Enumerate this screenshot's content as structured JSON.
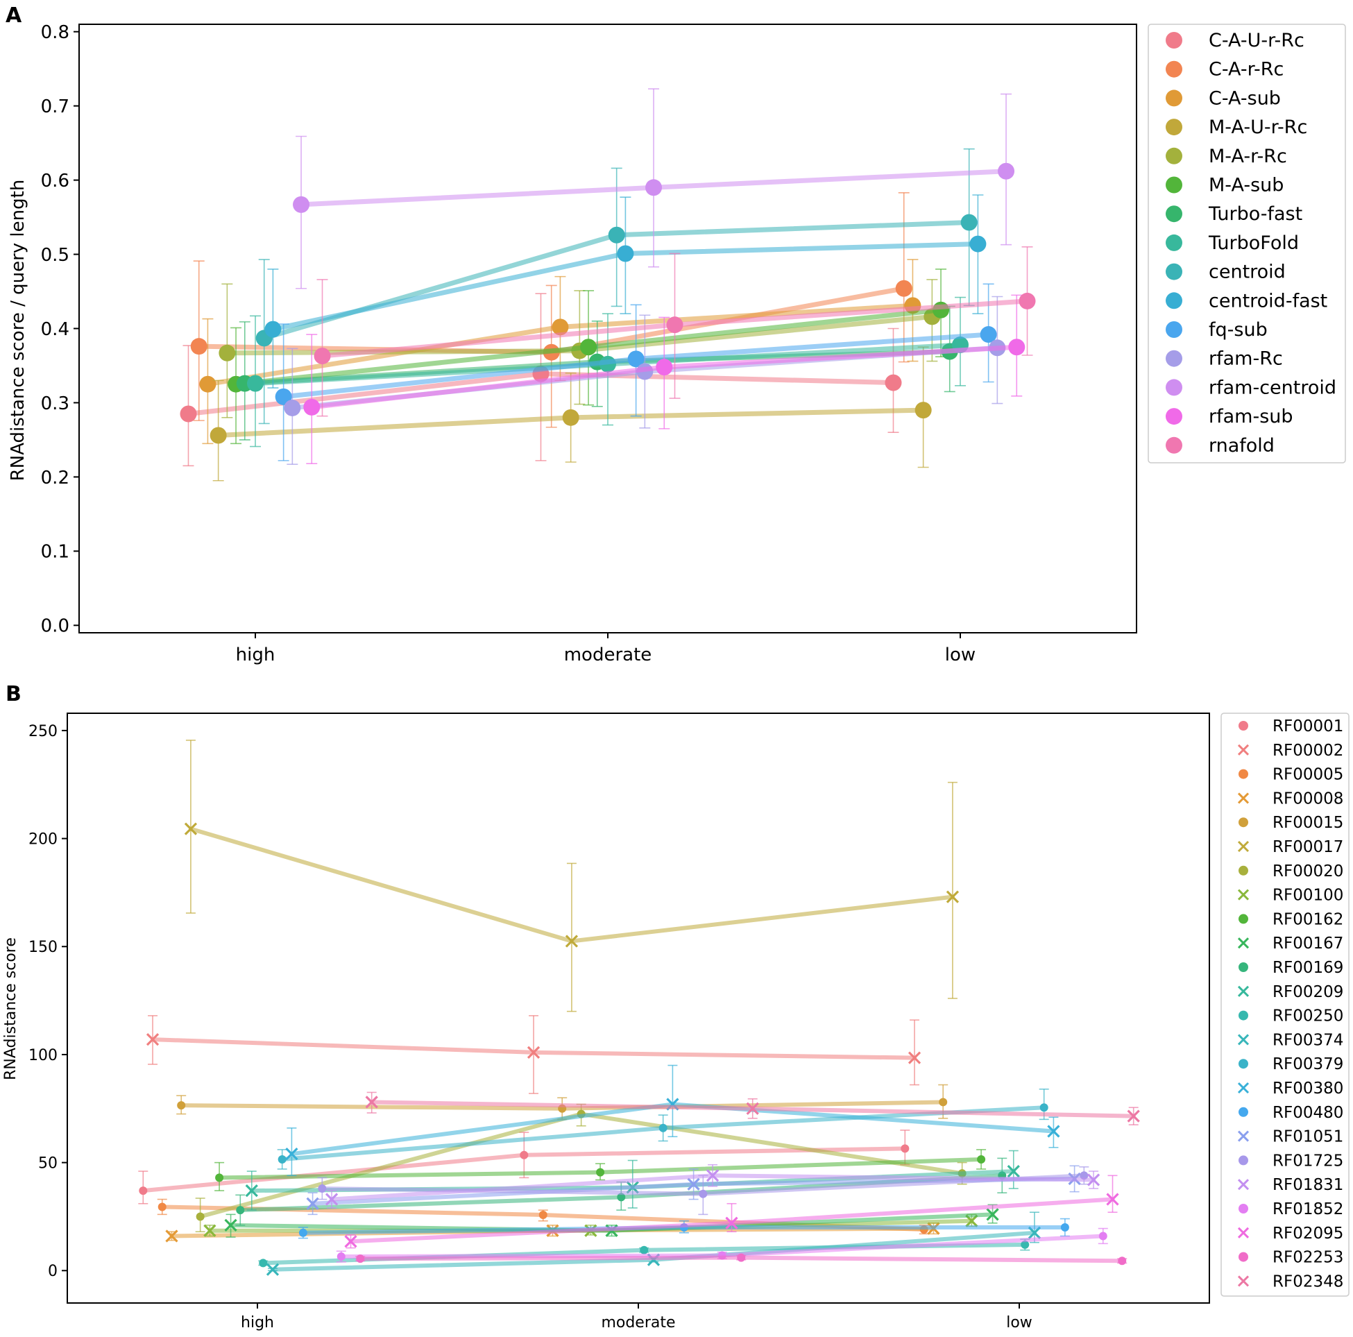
{
  "chart_data": [
    {
      "panel": "A",
      "type": "scatter",
      "title": "",
      "xlabel": "",
      "ylabel": "RNAdistance score / query length",
      "categories": [
        "high",
        "moderate",
        "low"
      ],
      "ylim": [
        -0.01,
        0.81
      ],
      "yticks": [
        "0.0",
        "0.1",
        "0.2",
        "0.3",
        "0.4",
        "0.5",
        "0.6",
        "0.7",
        "0.8"
      ],
      "legend_position": "outside-right",
      "series": [
        {
          "name": "C-A-U-r-Rc",
          "color": "#f07b8a",
          "marker": "circle",
          "offset": [
            -0.19,
            -0.19,
            -0.19
          ],
          "values": [
            0.285,
            0.339,
            0.327
          ],
          "err_low": [
            0.215,
            0.222,
            0.26
          ],
          "err_high": [
            0.377,
            0.447,
            0.4
          ]
        },
        {
          "name": "C-A-r-Rc",
          "color": "#f28552",
          "marker": "circle",
          "offset": [
            -0.16,
            -0.16,
            -0.16
          ],
          "values": [
            0.376,
            0.368,
            0.454
          ],
          "err_low": [
            0.276,
            0.267,
            0.355
          ],
          "err_high": [
            0.491,
            0.458,
            0.583
          ]
        },
        {
          "name": "C-A-sub",
          "color": "#e09a36",
          "marker": "circle",
          "offset": [
            -0.135,
            -0.135,
            -0.135
          ],
          "values": [
            0.325,
            0.402,
            0.431
          ],
          "err_low": [
            0.245,
            0.33,
            0.356
          ],
          "err_high": [
            0.413,
            0.47,
            0.493
          ]
        },
        {
          "name": "M-A-U-r-Rc",
          "color": "#c1a83a",
          "marker": "circle",
          "offset": [
            -0.105,
            -0.105,
            -0.105
          ],
          "values": [
            0.256,
            0.28,
            0.29
          ],
          "err_low": [
            0.195,
            0.22,
            0.213
          ],
          "err_high": [
            0.33,
            0.34,
            0.375
          ]
        },
        {
          "name": "M-A-r-Rc",
          "color": "#a3b13c",
          "marker": "circle",
          "offset": [
            -0.08,
            -0.08,
            -0.08
          ],
          "values": [
            0.367,
            0.37,
            0.416
          ],
          "err_low": [
            0.28,
            0.298,
            0.356
          ],
          "err_high": [
            0.46,
            0.451,
            0.466
          ]
        },
        {
          "name": "M-A-sub",
          "color": "#52b53a",
          "marker": "circle",
          "offset": [
            -0.055,
            -0.055,
            -0.055
          ],
          "values": [
            0.325,
            0.375,
            0.425
          ],
          "err_low": [
            0.245,
            0.297,
            0.362
          ],
          "err_high": [
            0.401,
            0.451,
            0.48
          ]
        },
        {
          "name": "Turbo-fast",
          "color": "#36b56c",
          "marker": "circle",
          "offset": [
            -0.03,
            -0.03,
            -0.03
          ],
          "values": [
            0.326,
            0.355,
            0.369
          ],
          "err_low": [
            0.25,
            0.295,
            0.315
          ],
          "err_high": [
            0.409,
            0.41,
            0.43
          ]
        },
        {
          "name": "TurboFold",
          "color": "#38b89c",
          "marker": "circle",
          "offset": [
            0.0,
            0.0,
            0.0
          ],
          "values": [
            0.326,
            0.352,
            0.378
          ],
          "err_low": [
            0.241,
            0.27,
            0.323
          ],
          "err_high": [
            0.417,
            0.42,
            0.442
          ]
        },
        {
          "name": "centroid",
          "color": "#3ab3b6",
          "marker": "circle",
          "offset": [
            0.025,
            0.025,
            0.025
          ],
          "values": [
            0.387,
            0.526,
            0.543
          ],
          "err_low": [
            0.272,
            0.43,
            0.431
          ],
          "err_high": [
            0.493,
            0.616,
            0.642
          ]
        },
        {
          "name": "centroid-fast",
          "color": "#38aed3",
          "marker": "circle",
          "offset": [
            0.05,
            0.05,
            0.05
          ],
          "values": [
            0.399,
            0.501,
            0.514
          ],
          "err_low": [
            0.32,
            0.42,
            0.42
          ],
          "err_high": [
            0.48,
            0.577,
            0.58
          ]
        },
        {
          "name": "fq-sub",
          "color": "#4aa6ee",
          "marker": "circle",
          "offset": [
            0.08,
            0.08,
            0.08
          ],
          "values": [
            0.308,
            0.359,
            0.392
          ],
          "err_low": [
            0.222,
            0.282,
            0.328
          ],
          "err_high": [
            0.406,
            0.432,
            0.46
          ]
        },
        {
          "name": "rfam-Rc",
          "color": "#a59de8",
          "marker": "circle",
          "offset": [
            0.105,
            0.105,
            0.105
          ],
          "values": [
            0.293,
            0.342,
            0.374
          ],
          "err_low": [
            0.217,
            0.266,
            0.299
          ],
          "err_high": [
            0.373,
            0.418,
            0.443
          ]
        },
        {
          "name": "rfam-centroid",
          "color": "#cf8ef0",
          "marker": "circle",
          "offset": [
            0.13,
            0.13,
            0.13
          ],
          "values": [
            0.567,
            0.59,
            0.612
          ],
          "err_low": [
            0.454,
            0.483,
            0.513
          ],
          "err_high": [
            0.659,
            0.723,
            0.716
          ]
        },
        {
          "name": "rfam-sub",
          "color": "#f06ae8",
          "marker": "circle",
          "offset": [
            0.16,
            0.16,
            0.16
          ],
          "values": [
            0.294,
            0.348,
            0.375
          ],
          "err_low": [
            0.218,
            0.265,
            0.309
          ],
          "err_high": [
            0.392,
            0.415,
            0.445
          ]
        },
        {
          "name": "rnafold",
          "color": "#f077b0",
          "marker": "circle",
          "offset": [
            0.19,
            0.19,
            0.19
          ],
          "values": [
            0.363,
            0.405,
            0.437
          ],
          "err_low": [
            0.282,
            0.306,
            0.364
          ],
          "err_high": [
            0.466,
            0.501,
            0.51
          ]
        }
      ]
    },
    {
      "panel": "B",
      "type": "scatter",
      "title": "",
      "xlabel": "",
      "ylabel": "RNAdistance score",
      "categories": [
        "high",
        "moderate",
        "low"
      ],
      "ylim": [
        -15,
        258
      ],
      "yticks": [
        "0",
        "50",
        "100",
        "150",
        "200",
        "250"
      ],
      "legend_position": "outside-right",
      "series": [
        {
          "name": "RF00001",
          "color": "#f07b8a",
          "marker": "dot",
          "offset": [
            -0.3,
            -0.3,
            -0.3
          ],
          "values": [
            37,
            53.5,
            56.5
          ],
          "err_low": [
            31,
            43,
            49
          ],
          "err_high": [
            46,
            64,
            65
          ]
        },
        {
          "name": "RF00002",
          "color": "#f07f7f",
          "marker": "x",
          "offset": [
            -0.275,
            -0.275,
            -0.275
          ],
          "values": [
            107,
            101,
            98.5
          ],
          "err_low": [
            95.5,
            82,
            86
          ],
          "err_high": [
            118,
            118,
            116
          ]
        },
        {
          "name": "RF00005",
          "color": "#f08844",
          "marker": "dot",
          "offset": [
            -0.25,
            -0.25,
            -0.25
          ],
          "values": [
            29.5,
            25.8,
            19
          ],
          "err_low": [
            26,
            23,
            17
          ],
          "err_high": [
            33,
            28,
            21
          ]
        },
        {
          "name": "RF00008",
          "color": "#e49a36",
          "marker": "x",
          "offset": [
            -0.225,
            -0.225,
            -0.225
          ],
          "values": [
            16,
            18.5,
            19.5
          ],
          "err_low": [
            14,
            16,
            17
          ],
          "err_high": [
            18,
            21,
            22
          ]
        },
        {
          "name": "RF00015",
          "color": "#d0a03a",
          "marker": "dot",
          "offset": [
            -0.2,
            -0.2,
            -0.2
          ],
          "values": [
            76.5,
            75,
            78
          ],
          "err_low": [
            72.5,
            70,
            70.5
          ],
          "err_high": [
            81,
            80,
            86
          ]
        },
        {
          "name": "RF00017",
          "color": "#c0aa3a",
          "marker": "x",
          "offset": [
            -0.175,
            -0.175,
            -0.175
          ],
          "values": [
            204.5,
            152.5,
            173
          ],
          "err_low": [
            165.5,
            120,
            126
          ],
          "err_high": [
            245.5,
            188.5,
            226
          ]
        },
        {
          "name": "RF00020",
          "color": "#a8b03c",
          "marker": "dot",
          "offset": [
            -0.15,
            -0.15,
            -0.15
          ],
          "values": [
            25,
            72.5,
            45
          ],
          "err_low": [
            18,
            67,
            40
          ],
          "err_high": [
            33.5,
            77,
            50
          ]
        },
        {
          "name": "RF00100",
          "color": "#8ab83c",
          "marker": "x",
          "offset": [
            -0.125,
            -0.125,
            -0.125
          ],
          "values": [
            18.5,
            18.5,
            23
          ],
          "err_low": [
            16,
            16.5,
            20.5
          ],
          "err_high": [
            21,
            21,
            26
          ]
        },
        {
          "name": "RF00162",
          "color": "#52b53a",
          "marker": "dot",
          "offset": [
            -0.1,
            -0.1,
            -0.1
          ],
          "values": [
            43,
            45.5,
            51.5
          ],
          "err_low": [
            37,
            42,
            47
          ],
          "err_high": [
            50,
            49.5,
            56
          ]
        },
        {
          "name": "RF00167",
          "color": "#38b65c",
          "marker": "x",
          "offset": [
            -0.07,
            -0.07,
            -0.07
          ],
          "values": [
            21,
            18.5,
            26
          ],
          "err_low": [
            15.5,
            16,
            22
          ],
          "err_high": [
            26,
            21,
            30.5
          ]
        },
        {
          "name": "RF00169",
          "color": "#36b57c",
          "marker": "dot",
          "offset": [
            -0.045,
            -0.045,
            -0.045
          ],
          "values": [
            28,
            34,
            44
          ],
          "err_low": [
            21,
            28,
            36
          ],
          "err_high": [
            35,
            41,
            52
          ]
        },
        {
          "name": "RF00209",
          "color": "#36b89c",
          "marker": "x",
          "offset": [
            -0.015,
            -0.015,
            -0.015
          ],
          "values": [
            37,
            38.5,
            46
          ],
          "err_low": [
            28,
            29,
            38
          ],
          "err_high": [
            46,
            51,
            55.5
          ]
        },
        {
          "name": "RF00250",
          "color": "#36b8ae",
          "marker": "dot",
          "offset": [
            0.015,
            0.015,
            0.015
          ],
          "values": [
            3.5,
            9.5,
            12
          ],
          "err_low": [
            2.5,
            8.5,
            9.5
          ],
          "err_high": [
            4.5,
            10.5,
            14.5
          ]
        },
        {
          "name": "RF00374",
          "color": "#38b6ba",
          "marker": "x",
          "offset": [
            0.04,
            0.04,
            0.04
          ],
          "values": [
            0.5,
            5,
            17.5
          ],
          "err_low": [
            0,
            4,
            13
          ],
          "err_high": [
            1,
            6,
            27
          ]
        },
        {
          "name": "RF00379",
          "color": "#3ab3c8",
          "marker": "dot",
          "offset": [
            0.065,
            0.065,
            0.065
          ],
          "values": [
            51.5,
            66,
            75.5
          ],
          "err_low": [
            47,
            60,
            70
          ],
          "err_high": [
            56,
            72,
            84
          ]
        },
        {
          "name": "RF00380",
          "color": "#38b0d8",
          "marker": "x",
          "offset": [
            0.09,
            0.09,
            0.09
          ],
          "values": [
            54,
            77,
            64.5
          ],
          "err_low": [
            44,
            62,
            57
          ],
          "err_high": [
            66,
            95,
            71
          ]
        },
        {
          "name": "RF00480",
          "color": "#44a8ee",
          "marker": "dot",
          "offset": [
            0.12,
            0.12,
            0.12
          ],
          "values": [
            17.5,
            20,
            20
          ],
          "err_low": [
            15,
            17.5,
            16
          ],
          "err_high": [
            20,
            23,
            24
          ]
        },
        {
          "name": "RF01051",
          "color": "#8a9fee",
          "marker": "x",
          "offset": [
            0.145,
            0.145,
            0.145
          ],
          "values": [
            31,
            40,
            42.5
          ],
          "err_low": [
            26,
            33,
            36.5
          ],
          "err_high": [
            36,
            47,
            48.5
          ]
        },
        {
          "name": "RF01725",
          "color": "#a798ea",
          "marker": "dot",
          "offset": [
            0.17,
            0.17,
            0.17
          ],
          "values": [
            38,
            35.5,
            44
          ],
          "err_low": [
            33,
            26,
            40
          ],
          "err_high": [
            43,
            44,
            48
          ]
        },
        {
          "name": "RF01831",
          "color": "#c38ff0",
          "marker": "x",
          "offset": [
            0.195,
            0.195,
            0.195
          ],
          "values": [
            33,
            44,
            42
          ],
          "err_low": [
            29,
            39,
            38
          ],
          "err_high": [
            37,
            49,
            46
          ]
        },
        {
          "name": "RF01852",
          "color": "#e37ef2",
          "marker": "dot",
          "offset": [
            0.22,
            0.22,
            0.22
          ],
          "values": [
            6.5,
            7,
            16
          ],
          "err_low": [
            4,
            5.5,
            12.5
          ],
          "err_high": [
            9,
            8.5,
            19.5
          ]
        },
        {
          "name": "RF02095",
          "color": "#ef6ae0",
          "marker": "x",
          "offset": [
            0.245,
            0.245,
            0.245
          ],
          "values": [
            13.5,
            22,
            33
          ],
          "err_low": [
            10.5,
            18,
            27
          ],
          "err_high": [
            16.5,
            31,
            44
          ]
        },
        {
          "name": "RF02253",
          "color": "#f06cc8",
          "marker": "dot",
          "offset": [
            0.27,
            0.27,
            0.27
          ],
          "values": [
            5.5,
            6,
            4.5
          ],
          "err_low": [
            4.5,
            5,
            3.5
          ],
          "err_high": [
            6.5,
            7,
            5.5
          ]
        },
        {
          "name": "RF02348",
          "color": "#ec78a4",
          "marker": "x",
          "offset": [
            0.3,
            0.3,
            0.3
          ],
          "values": [
            78,
            75,
            71.5
          ],
          "err_low": [
            73,
            70.5,
            67.5
          ],
          "err_high": [
            82.5,
            79.5,
            75.5
          ]
        }
      ]
    }
  ]
}
